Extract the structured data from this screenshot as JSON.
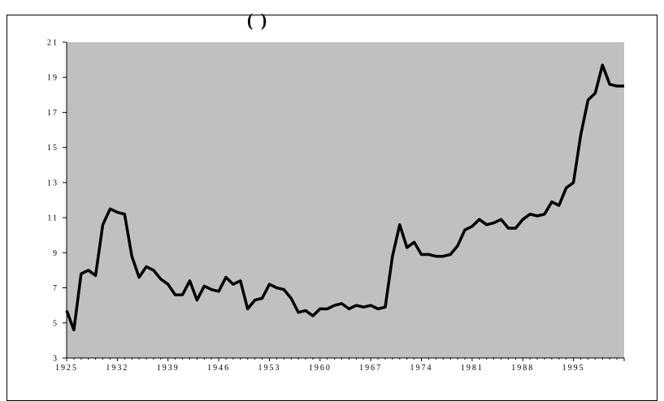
{
  "header": {
    "title_fragment": "(                    )"
  },
  "chart_data": {
    "type": "line",
    "title": "",
    "xlabel": "",
    "ylabel": "",
    "xlim": [
      1925,
      2002
    ],
    "ylim": [
      3,
      21
    ],
    "x_ticks": [
      "1925",
      "1932",
      "1939",
      "1946",
      "1953",
      "1960",
      "1967",
      "1974",
      "1981",
      "1988",
      "1995"
    ],
    "y_ticks": [
      "3",
      "5",
      "7",
      "9",
      "11",
      "13",
      "15",
      "17",
      "19",
      "21"
    ],
    "grid": false,
    "plot_background": "#c0c0c0",
    "line_color": "#000000",
    "series": [
      {
        "x": [
          1925,
          1926,
          1927,
          1928,
          1929,
          1930,
          1931,
          1932,
          1933,
          1934,
          1935,
          1936,
          1937,
          1938,
          1939,
          1940,
          1941,
          1942,
          1943,
          1944,
          1945,
          1946,
          1947,
          1948,
          1949,
          1950,
          1951,
          1952,
          1953,
          1954,
          1955,
          1956,
          1957,
          1958,
          1959,
          1960,
          1961,
          1962,
          1963,
          1964,
          1965,
          1966,
          1967,
          1968,
          1969,
          1970,
          1971,
          1972,
          1973,
          1974,
          1975,
          1976,
          1977,
          1978,
          1979,
          1980,
          1981,
          1982,
          1983,
          1984,
          1985,
          1986,
          1987,
          1988,
          1989,
          1990,
          1991,
          1992,
          1993,
          1994,
          1995,
          1996,
          1997,
          1998,
          1999,
          2000,
          2001,
          2002
        ],
        "y": [
          5.7,
          4.6,
          7.8,
          8.0,
          7.7,
          10.6,
          11.5,
          11.3,
          11.2,
          8.8,
          7.6,
          8.2,
          8.0,
          7.5,
          7.2,
          6.6,
          6.6,
          7.4,
          6.3,
          7.1,
          6.9,
          6.8,
          7.6,
          7.2,
          7.4,
          5.8,
          6.3,
          6.4,
          7.2,
          7.0,
          6.9,
          6.4,
          5.6,
          5.7,
          5.4,
          5.8,
          5.8,
          6.0,
          6.1,
          5.8,
          6.0,
          5.9,
          6.0,
          5.8,
          5.9,
          8.8,
          10.6,
          9.3,
          9.6,
          8.9,
          8.9,
          8.8,
          8.8,
          8.9,
          9.4,
          10.3,
          10.5,
          10.9,
          10.6,
          10.7,
          10.9,
          10.4,
          10.4,
          10.9,
          11.2,
          11.1,
          11.2,
          11.9,
          11.7,
          12.7,
          13.0,
          15.7,
          17.7,
          18.1,
          19.7,
          18.6,
          18.5,
          18.5
        ]
      }
    ]
  }
}
